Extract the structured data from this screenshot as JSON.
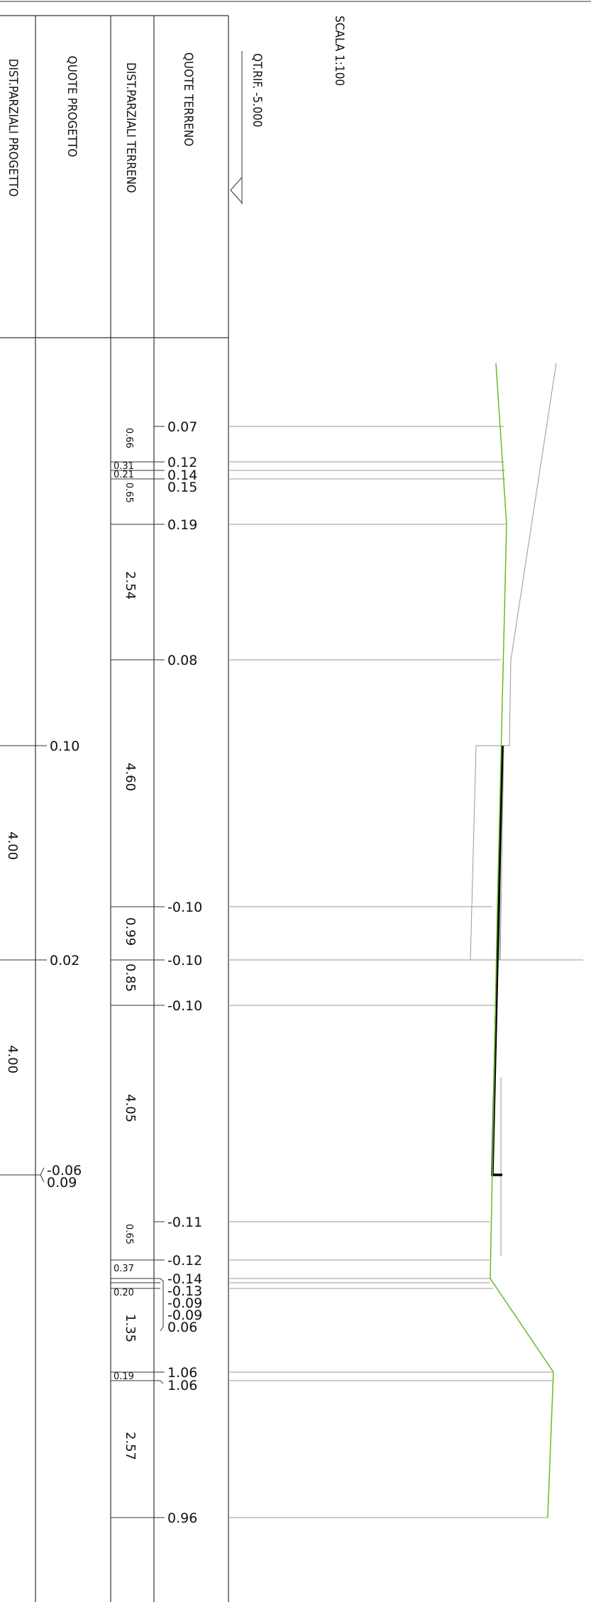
{
  "headers": {
    "dist_parziali_progetto": "DIST.PARZIALI PROGETTO",
    "quote_progetto": "QUOTE PROGETTO",
    "dist_parziali_terreno": "DIST.PARZIALI TERRENO",
    "quote_terreno": "QUOTE TERRENO"
  },
  "reference_level": "QT.RIF. -5.000",
  "scale": "SCALA 1:100",
  "quote_terreno": {
    "q1": "0.07",
    "q2": "0.12",
    "q3": "0.14",
    "q4": "0.15",
    "q5": "0.19",
    "q6": "0.08",
    "q7": "-0.10",
    "q8": "-0.10",
    "q9": "-0.10",
    "q10": "-0.11",
    "q11": "-0.12",
    "q12": "-0.14",
    "q13": "-0.13",
    "q14": "-0.09",
    "q15": "-0.09",
    "q16": "0.06",
    "q17": "1.06",
    "q18": "1.06",
    "q19": "0.96"
  },
  "dist_terreno": {
    "d1": "0.66",
    "d2": "0.31",
    "d3": "0.21",
    "d4": "0.65",
    "d5": "2.54",
    "d6": "4.60",
    "d7": "0.99",
    "d8": "0.85",
    "d9": "4.05",
    "d10": "0.65",
    "d11": "0.37",
    "d12": "0.20",
    "d13": "1.35",
    "d14": "0.19",
    "d15": "2.57"
  },
  "quote_progetto": {
    "p1": "0.10",
    "p2": "0.02",
    "p3": "-0.06",
    "p4": "0.09"
  },
  "dist_progetto": {
    "dp1": "4.00",
    "dp2": "4.00"
  },
  "colors": {
    "terrain_profile": "#66bb22",
    "project_profile": "#000000",
    "grid": "#333333",
    "guide": "#999999"
  }
}
